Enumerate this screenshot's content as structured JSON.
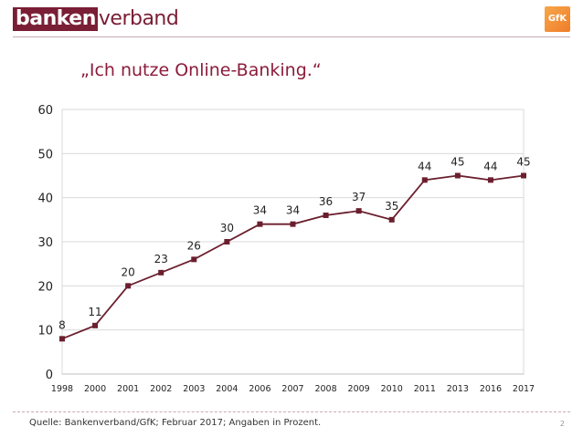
{
  "header": {
    "logo_part1": "banken",
    "logo_part2": "verband",
    "partner_logo": "GfK"
  },
  "chart_data": {
    "type": "line",
    "title": "„Ich nutze Online-Banking.“",
    "categories": [
      "1998",
      "2000",
      "2001",
      "2002",
      "2003",
      "2004",
      "2006",
      "2007",
      "2008",
      "2009",
      "2010",
      "2011",
      "2013",
      "2016",
      "2017"
    ],
    "series": [
      {
        "values": [
          8,
          11,
          20,
          23,
          26,
          30,
          34,
          34,
          36,
          37,
          35,
          44,
          45,
          44,
          45
        ],
        "color": "#6b1f2e"
      }
    ],
    "ylim": [
      0,
      60
    ],
    "yticks": [
      "0",
      "10",
      "20",
      "30",
      "40",
      "50",
      "60"
    ],
    "grid": true,
    "marker": "square"
  },
  "footer": {
    "source": "Quelle: Bankenverband/GfK; Februar 2017; Angaben in Prozent.",
    "page": "2"
  }
}
